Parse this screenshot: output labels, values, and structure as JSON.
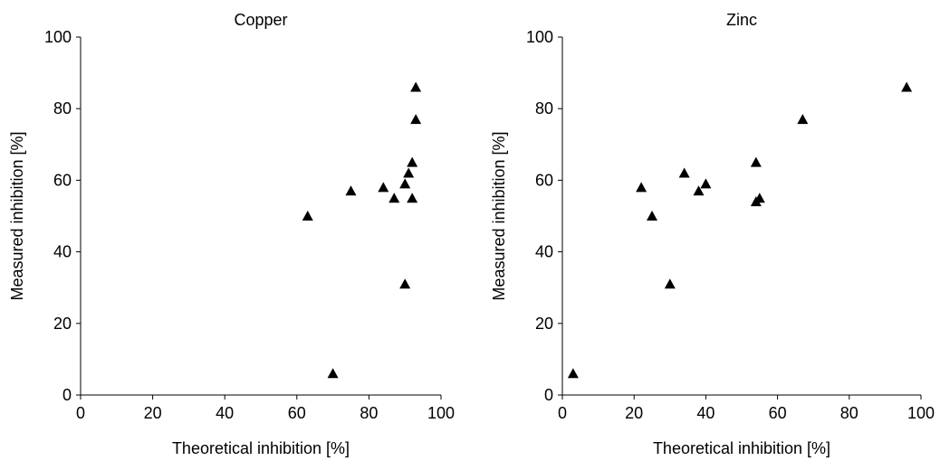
{
  "chart_data": [
    {
      "type": "scatter",
      "title": "Copper",
      "xlabel": "Theoretical inhibition [%]",
      "ylabel": "Measured inhibition [%]",
      "series": [
        {
          "color": "#000000",
          "x": [
            63,
            70,
            75,
            84,
            87,
            90,
            91,
            92,
            92,
            90,
            93,
            93
          ],
          "values": [
            50,
            6,
            57,
            58,
            55,
            59,
            62,
            65,
            55,
            31,
            77,
            86
          ]
        }
      ],
      "xlim": [
        0,
        100
      ],
      "ylim": [
        0,
        100
      ],
      "xticks": [
        0,
        20,
        40,
        60,
        80,
        100
      ],
      "yticks": [
        0,
        20,
        40,
        60,
        80,
        100
      ]
    },
    {
      "type": "scatter",
      "title": "Zinc",
      "xlabel": "Theoretical inhibition [%]",
      "ylabel": "Measured inhibition [%]",
      "series": [
        {
          "color": "#000000",
          "x": [
            3,
            22,
            25,
            34,
            38,
            40,
            30,
            54,
            55,
            54,
            67,
            96
          ],
          "values": [
            6,
            58,
            50,
            62,
            57,
            59,
            31,
            54,
            55,
            65,
            77,
            86
          ]
        }
      ],
      "xlim": [
        0,
        100
      ],
      "ylim": [
        0,
        100
      ],
      "xticks": [
        0,
        20,
        40,
        60,
        80,
        100
      ],
      "yticks": [
        0,
        20,
        40,
        60,
        80,
        100
      ]
    }
  ]
}
